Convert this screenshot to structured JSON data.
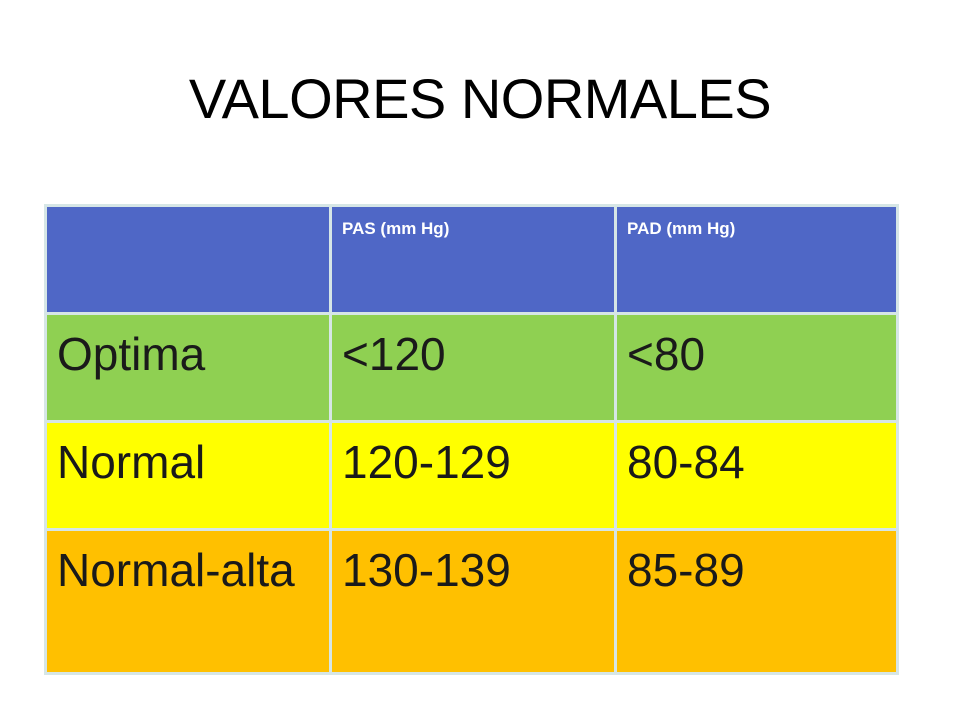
{
  "slide": {
    "title": "VALORES NORMALES"
  },
  "colors": {
    "header_bg": "#4f67c6",
    "optima_bg": "#8fd052",
    "normal_bg": "#ffff00",
    "normal_alta_bg": "#ffc000",
    "cell_border": "#d6e6e6"
  },
  "table": {
    "headers": [
      "",
      "PAS (mm Hg)",
      "PAD (mm Hg)"
    ],
    "rows": [
      {
        "category": "Optima",
        "pas": "<120",
        "pad": "<80"
      },
      {
        "category": "Normal",
        "pas": "120-129",
        "pad": "80-84"
      },
      {
        "category": "Normal-alta",
        "pas": "130-139",
        "pad": "85-89"
      }
    ]
  }
}
